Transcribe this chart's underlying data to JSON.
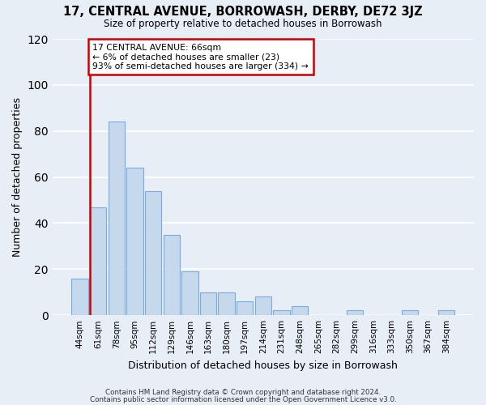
{
  "title": "17, CENTRAL AVENUE, BORROWASH, DERBY, DE72 3JZ",
  "subtitle": "Size of property relative to detached houses in Borrowash",
  "xlabel": "Distribution of detached houses by size in Borrowash",
  "ylabel": "Number of detached properties",
  "bar_color": "#c5d8ec",
  "bar_edge_color": "#7aabe0",
  "background_color": "#e8eef5",
  "grid_color": "white",
  "categories": [
    "44sqm",
    "61sqm",
    "78sqm",
    "95sqm",
    "112sqm",
    "129sqm",
    "146sqm",
    "163sqm",
    "180sqm",
    "197sqm",
    "214sqm",
    "231sqm",
    "248sqm",
    "265sqm",
    "282sqm",
    "299sqm",
    "316sqm",
    "333sqm",
    "350sqm",
    "367sqm",
    "384sqm"
  ],
  "values": [
    16,
    47,
    84,
    64,
    54,
    35,
    19,
    10,
    10,
    6,
    8,
    2,
    4,
    0,
    0,
    2,
    0,
    0,
    2,
    0,
    2
  ],
  "ylim": [
    0,
    120
  ],
  "yticks": [
    0,
    20,
    40,
    60,
    80,
    100,
    120
  ],
  "ref_line_index": 1,
  "ref_line_color": "#cc0000",
  "annotation_line1": "17 CENTRAL AVENUE: 66sqm",
  "annotation_line2": "← 6% of detached houses are smaller (23)",
  "annotation_line3": "93% of semi-detached houses are larger (334) →",
  "annotation_box_color": "white",
  "annotation_box_edge_color": "#cc0000",
  "footer_line1": "Contains HM Land Registry data © Crown copyright and database right 2024.",
  "footer_line2": "Contains public sector information licensed under the Open Government Licence v3.0."
}
